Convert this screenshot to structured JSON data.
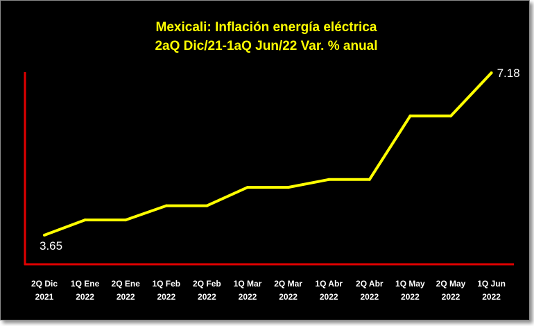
{
  "chart_data": {
    "type": "line",
    "title_line1": "Mexicali: Inflación energía eléctrica",
    "title_line2": "2aQ Dic/21-1aQ Jun/22 Var. % anual",
    "categories": [
      {
        "top": "2Q Dic",
        "bottom": "2021"
      },
      {
        "top": "1Q Ene",
        "bottom": "2022"
      },
      {
        "top": "2Q Ene",
        "bottom": "2022"
      },
      {
        "top": "1Q Feb",
        "bottom": "2022"
      },
      {
        "top": "2Q Feb",
        "bottom": "2022"
      },
      {
        "top": "1Q Mar",
        "bottom": "2022"
      },
      {
        "top": "2Q Mar",
        "bottom": "2022"
      },
      {
        "top": "1Q Abr",
        "bottom": "2022"
      },
      {
        "top": "2Q Abr",
        "bottom": "2022"
      },
      {
        "top": "1Q May",
        "bottom": "2022"
      },
      {
        "top": "2Q May",
        "bottom": "2022"
      },
      {
        "top": "1Q Jun",
        "bottom": "2022"
      }
    ],
    "series": [
      {
        "name": "Var. % anual",
        "values": [
          3.65,
          3.98,
          3.98,
          4.29,
          4.29,
          4.69,
          4.69,
          4.86,
          4.86,
          6.24,
          6.24,
          7.18
        ]
      }
    ],
    "data_labels": [
      {
        "index": 0,
        "text": "3.65"
      },
      {
        "index": 11,
        "text": "7.18"
      }
    ],
    "ylim": [
      0,
      7.18
    ],
    "xlabel": "",
    "ylabel": "",
    "grid": false,
    "colors": {
      "background": "#000000",
      "line": "#ffff00",
      "axis": "#e00000",
      "title": "#ffff00",
      "text": "#ffffff"
    }
  }
}
